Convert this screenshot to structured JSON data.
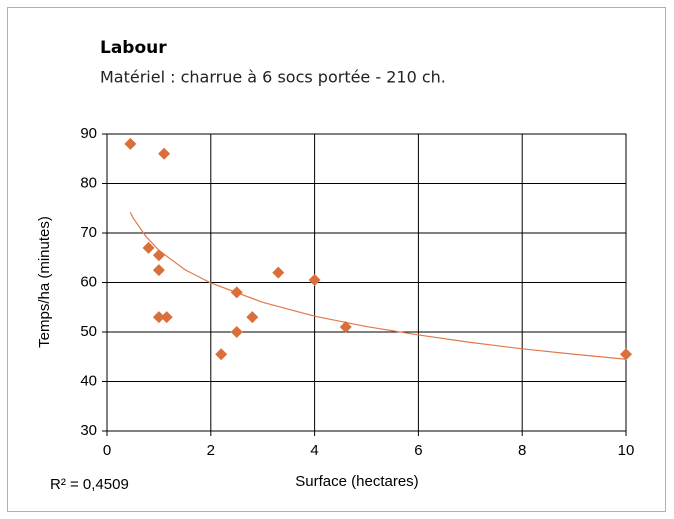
{
  "chart_data": {
    "type": "scatter",
    "title": "Labour",
    "subtitle": "Matériel : charrue à 6 socs portée - 210 ch.",
    "x_label": "Surface (hectares)",
    "y_label": "Temps/ha (minutes)",
    "annotation": "R² = 0,4509",
    "color": "#d9703c",
    "x": [
      0.45,
      1.1,
      0.8,
      1.0,
      1.0,
      1.0,
      1.15,
      2.2,
      2.5,
      2.5,
      2.8,
      3.3,
      4.0,
      4.6,
      10
    ],
    "values": [
      88,
      86,
      67,
      65.5,
      62.5,
      53,
      53,
      45.5,
      58,
      50,
      53,
      62,
      60.5,
      51,
      45.5
    ],
    "trendline": {
      "color": "#e07a4a",
      "x": [
        0.45,
        0.5,
        0.75,
        1,
        1.5,
        2,
        3,
        4,
        5,
        6,
        7,
        8,
        9,
        10
      ],
      "values": [
        74.2,
        73.1,
        69.3,
        66.5,
        62.6,
        59.9,
        56.0,
        53.2,
        51.1,
        49.4,
        47.9,
        46.6,
        45.5,
        44.5
      ]
    },
    "xlim": [
      0,
      10
    ],
    "xticks": [
      0,
      2,
      4,
      6,
      8,
      10
    ],
    "ylim": [
      30,
      90
    ],
    "yticks": [
      30,
      40,
      50,
      60,
      70,
      80,
      90
    ],
    "grid": true
  }
}
